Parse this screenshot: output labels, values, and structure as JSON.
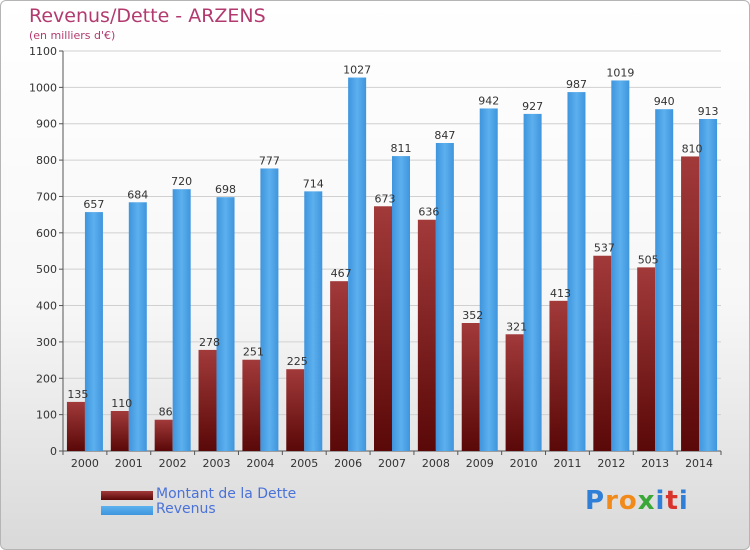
{
  "header": {
    "title": "Revenus/Dette - ARZENS",
    "unit_note": "(en milliers d'€)"
  },
  "chart_data": {
    "type": "bar",
    "title": "Revenus/Dette - ARZENS",
    "subtitle": "(en milliers d'€)",
    "categories": [
      "2000",
      "2001",
      "2002",
      "2003",
      "2004",
      "2005",
      "2006",
      "2007",
      "2008",
      "2009",
      "2010",
      "2011",
      "2012",
      "2013",
      "2014"
    ],
    "series": [
      {
        "name": "Montant de la Dette",
        "color": "#7a1a1a",
        "values": [
          135,
          110,
          86,
          278,
          251,
          225,
          467,
          673,
          636,
          352,
          321,
          413,
          537,
          505,
          810
        ]
      },
      {
        "name": "Revenus",
        "color": "#4aa3e8",
        "values": [
          657,
          684,
          720,
          698,
          777,
          714,
          1027,
          811,
          847,
          942,
          927,
          987,
          1019,
          940,
          913
        ]
      }
    ],
    "ylim": [
      0,
      1100
    ],
    "yticks": [
      0,
      100,
      200,
      300,
      400,
      500,
      600,
      700,
      800,
      900,
      1000,
      1100
    ],
    "grid": true,
    "legend_position": "bottom-left"
  },
  "legend": {
    "items": [
      {
        "label": "Montant de la Dette",
        "color": "#7a1a1a"
      },
      {
        "label": "Revenus",
        "color": "#4aa3e8"
      }
    ]
  },
  "branding": {
    "logo_text": "Proxiti",
    "letter_colors": [
      "#2f7fd8",
      "#f28a1a",
      "#f28a1a",
      "#3aa838",
      "#2f7fd8",
      "#d8342c",
      "#2f7fd8"
    ]
  }
}
